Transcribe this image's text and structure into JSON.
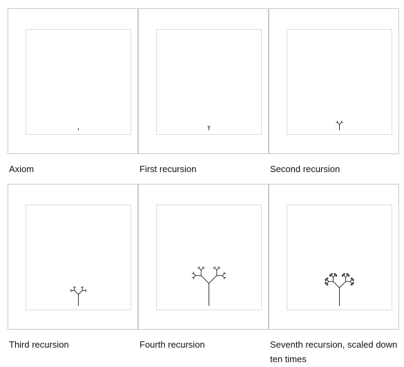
{
  "panels": [
    {
      "caption": "Axiom",
      "depth": 0,
      "scale": 1
    },
    {
      "caption": "First recursion",
      "depth": 1,
      "scale": 1
    },
    {
      "caption": "Second recursion",
      "depth": 2,
      "scale": 1
    },
    {
      "caption": "Third recursion",
      "depth": 3,
      "scale": 1
    },
    {
      "caption": "Fourth recursion",
      "depth": 4,
      "scale": 1
    },
    {
      "caption": "Seventh recursion, scaled down ten times",
      "depth": 7,
      "scale": 0.1
    }
  ],
  "colors": {
    "frame_border": "#c9c9c9",
    "canvas_border": "#dcdcdc",
    "stroke": "#333333"
  }
}
